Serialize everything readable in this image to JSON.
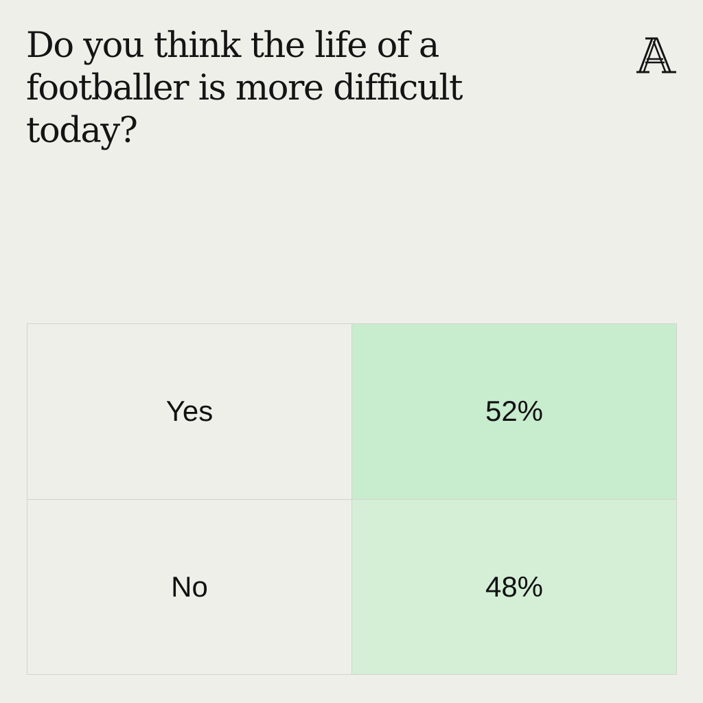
{
  "header": {
    "title": "Do you think the life of a footballer is more difficult today?",
    "logo_icon": "athletic-a-logo-icon"
  },
  "colors": {
    "background": "#efefe9",
    "text": "#141414",
    "border": "#d3d3cd",
    "yes_fill": "#c8ecce",
    "no_fill": "#d5efd7"
  },
  "chart_data": {
    "type": "table",
    "title": "Do you think the life of a footballer is more difficult today?",
    "categories": [
      "Yes",
      "No"
    ],
    "values": [
      52,
      48
    ],
    "value_labels": [
      "52%",
      "48%"
    ],
    "unit": "%"
  },
  "table": {
    "rows": [
      {
        "label": "Yes",
        "value": "52%"
      },
      {
        "label": "No",
        "value": "48%"
      }
    ]
  }
}
